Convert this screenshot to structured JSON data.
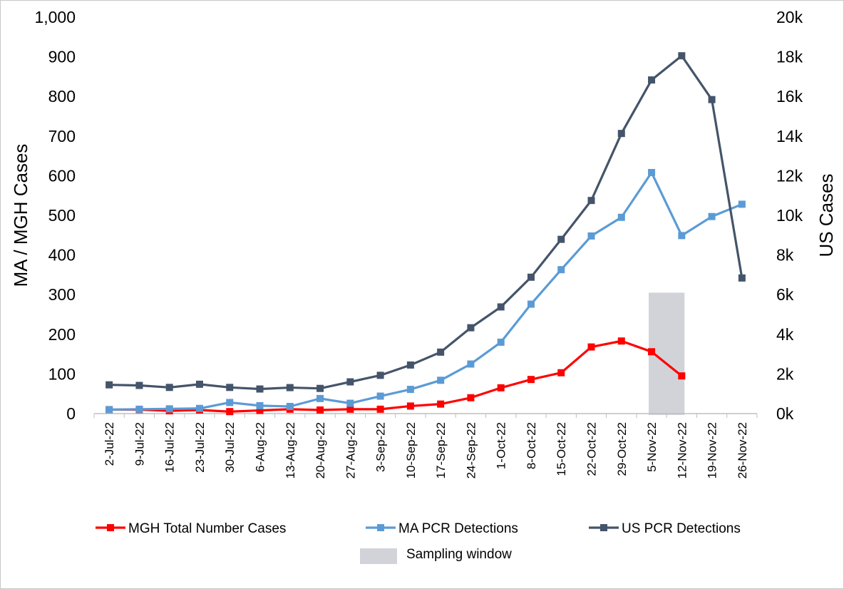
{
  "chart_data": {
    "type": "line",
    "title": "",
    "xlabel": "",
    "ylabel": "MA / MGH Cases",
    "y2label": "US Cases",
    "ylim": [
      0,
      1000
    ],
    "y2lim": [
      0,
      20000
    ],
    "yticks": [
      "0",
      "100",
      "200",
      "300",
      "400",
      "500",
      "600",
      "700",
      "800",
      "900",
      "1,000"
    ],
    "y2ticks": [
      "0k",
      "2k",
      "4k",
      "6k",
      "8k",
      "10k",
      "12k",
      "14k",
      "16k",
      "18k",
      "20k"
    ],
    "grid": false,
    "legend_position": "bottom",
    "categories": [
      "2-Jul-22",
      "9-Jul-22",
      "16-Jul-22",
      "23-Jul-22",
      "30-Jul-22",
      "6-Aug-22",
      "13-Aug-22",
      "20-Aug-22",
      "27-Aug-22",
      "3-Sep-22",
      "10-Sep-22",
      "17-Sep-22",
      "24-Sep-22",
      "1-Oct-22",
      "8-Oct-22",
      "15-Oct-22",
      "22-Oct-22",
      "29-Oct-22",
      "5-Nov-22",
      "12-Nov-22",
      "19-Nov-22",
      "26-Nov-22"
    ],
    "series": [
      {
        "name": "MGH Total Number Cases",
        "axis": "left",
        "color": "#ff0000",
        "values": [
          10,
          10,
          7,
          9,
          5,
          8,
          11,
          9,
          11,
          11,
          19,
          24,
          40,
          65,
          86,
          103,
          168,
          183,
          156,
          95,
          null,
          null
        ]
      },
      {
        "name": "MA PCR Detections",
        "axis": "left",
        "color": "#5b9bd5",
        "values": [
          10,
          11,
          12,
          13,
          28,
          20,
          18,
          38,
          26,
          44,
          61,
          84,
          125,
          180,
          276,
          363,
          448,
          495,
          608,
          449,
          497,
          528
        ]
      },
      {
        "name": "US PCR Detections",
        "axis": "right",
        "color": "#44546a",
        "values": [
          1450,
          1420,
          1320,
          1480,
          1320,
          1240,
          1310,
          1270,
          1600,
          1930,
          2450,
          3100,
          4330,
          5380,
          6880,
          8790,
          10750,
          14130,
          16830,
          18050,
          15840,
          6840
        ]
      }
    ],
    "sampling_window": {
      "label": "Sampling window",
      "color": "#d1d3d8",
      "start": "5-Nov-22",
      "end": "12-Nov-22",
      "y_top": 305
    }
  }
}
